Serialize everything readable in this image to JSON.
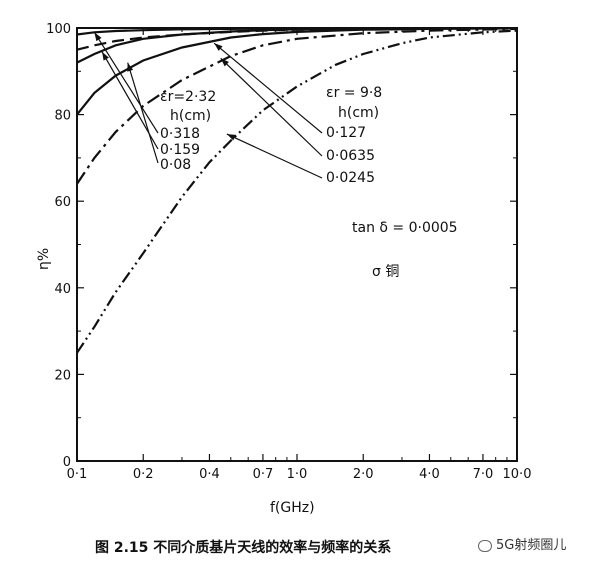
{
  "chart_data": {
    "type": "line",
    "title": "",
    "xlabel": "f(GHz)",
    "ylabel": "η%",
    "x_scale": "log",
    "x_ticks": [
      0.1,
      0.2,
      0.4,
      0.7,
      1.0,
      2.0,
      4.0,
      7.0,
      10.0
    ],
    "x_tick_labels": [
      "0·1",
      "0·2",
      "0·4",
      "0·7",
      "1·0",
      "2·0",
      "4·0",
      "7·0",
      "10·0"
    ],
    "xlim": [
      0.1,
      10.0
    ],
    "y_ticks": [
      0,
      20,
      40,
      60,
      80,
      100
    ],
    "y_tick_labels": [
      "0",
      "20",
      "40",
      "60",
      "80",
      "100"
    ],
    "ylim": [
      0,
      100
    ],
    "grid": false,
    "series": [
      {
        "name": "0·318",
        "group": "εr=2·32",
        "style": "solid",
        "x": [
          0.1,
          0.12,
          0.15,
          0.2,
          0.3,
          0.5,
          0.7,
          1.0,
          2.0,
          4.0,
          10.0
        ],
        "y": [
          98.5,
          99.0,
          99.3,
          99.5,
          99.7,
          99.8,
          99.85,
          99.9,
          99.95,
          99.97,
          99.98
        ]
      },
      {
        "name": "0·159",
        "group": "εr=2·32",
        "style": "solid",
        "x": [
          0.1,
          0.12,
          0.15,
          0.2,
          0.3,
          0.5,
          0.7,
          1.0,
          2.0,
          4.0,
          10.0
        ],
        "y": [
          92,
          94,
          96,
          97.5,
          98.5,
          99.2,
          99.5,
          99.7,
          99.85,
          99.92,
          99.97
        ]
      },
      {
        "name": "0·08",
        "group": "εr=2·32",
        "style": "solid",
        "x": [
          0.1,
          0.12,
          0.15,
          0.2,
          0.3,
          0.5,
          0.7,
          1.0,
          2.0,
          4.0,
          10.0
        ],
        "y": [
          80,
          85,
          89,
          92.5,
          95.5,
          97.8,
          98.6,
          99.1,
          99.6,
          99.8,
          99.93
        ]
      },
      {
        "name": "0·127",
        "group": "εr=9·8",
        "style": "dashed",
        "x": [
          0.1,
          0.12,
          0.15,
          0.2,
          0.3,
          0.5,
          0.7,
          1.0,
          2.0,
          4.0,
          10.0
        ],
        "y": [
          95,
          96,
          97,
          97.8,
          98.5,
          99.1,
          99.4,
          99.6,
          99.8,
          99.9,
          99.95
        ]
      },
      {
        "name": "0·0635",
        "group": "εr=9·8",
        "style": "dash-dot",
        "x": [
          0.1,
          0.12,
          0.15,
          0.2,
          0.3,
          0.5,
          0.7,
          1.0,
          2.0,
          4.0,
          10.0
        ],
        "y": [
          64,
          70,
          76,
          82,
          88,
          93.5,
          96,
          97.5,
          98.8,
          99.4,
          99.8
        ]
      },
      {
        "name": "0·0245",
        "group": "εr=9·8",
        "style": "dash-dot-dot",
        "x": [
          0.1,
          0.12,
          0.15,
          0.2,
          0.3,
          0.4,
          0.5,
          0.7,
          1.0,
          1.5,
          2.0,
          3.0,
          4.0,
          7.0,
          10.0
        ],
        "y": [
          25,
          31,
          39,
          48,
          61,
          69,
          74,
          81,
          86.5,
          91.5,
          94,
          96.5,
          97.8,
          99,
          99.4
        ]
      }
    ],
    "annotations": {
      "er_left": "εr=2·32",
      "h_left": "h(cm)",
      "er_right": "εr = 9·8",
      "h_right": "h(cm)",
      "tan_delta": "tan δ = 0·0005",
      "sigma": "σ 铜"
    }
  },
  "caption": "图 2.15   不同介质基片天线的效率与频率的关系",
  "watermark": "5G射频圈儿"
}
